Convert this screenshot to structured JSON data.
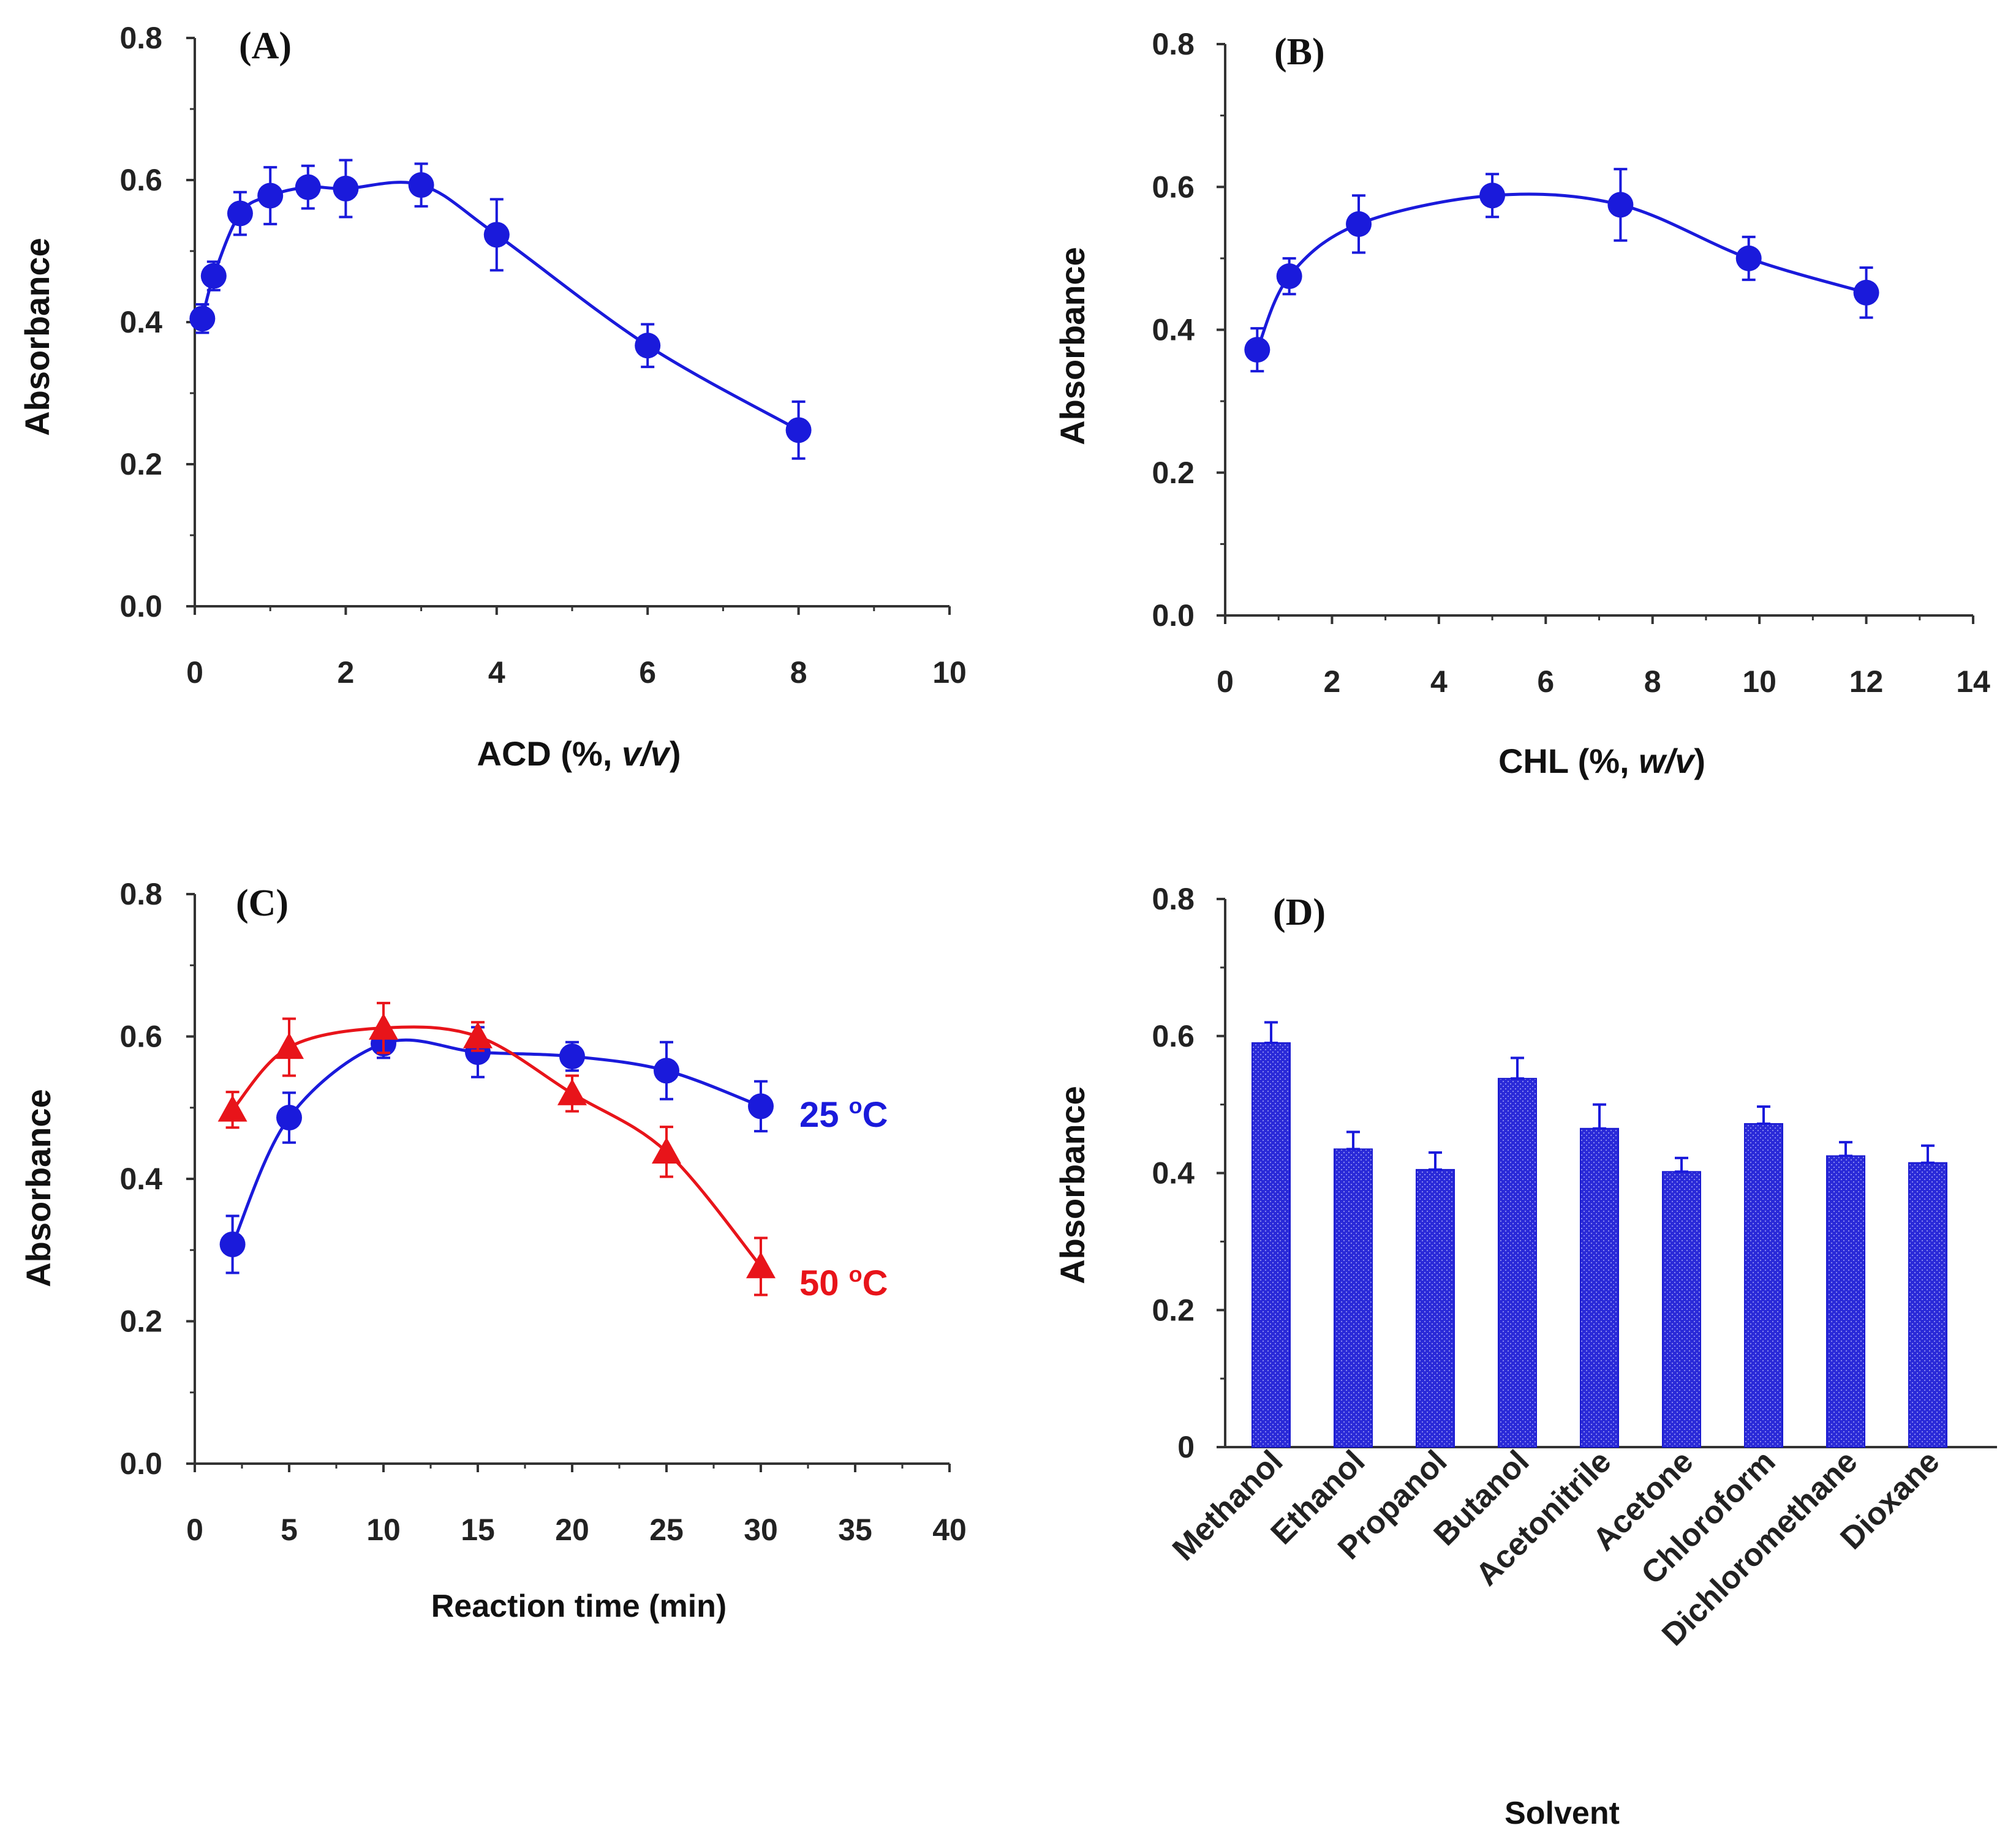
{
  "chart_data": [
    {
      "panel": "(A)",
      "type": "line",
      "xlabel_prefix": "ACD (%, ",
      "xlabel_italic": "v/v",
      "xlabel_suffix": ")",
      "ylabel": "Absorbance",
      "xlim": [
        0,
        10
      ],
      "ylim": [
        0,
        0.8
      ],
      "xticks": [
        "0",
        "2",
        "4",
        "6",
        "8",
        "10"
      ],
      "yticks": [
        "0.0",
        "0.2",
        "0.4",
        "0.6",
        "0.8"
      ],
      "color": "#1a1adb",
      "series": [
        {
          "name": "ACD",
          "x": [
            0.1,
            0.25,
            0.6,
            1.0,
            1.5,
            2.0,
            3.0,
            4.0,
            6.0,
            8.0
          ],
          "y": [
            0.405,
            0.465,
            0.553,
            0.578,
            0.59,
            0.588,
            0.593,
            0.523,
            0.367,
            0.248
          ],
          "err": [
            0.02,
            0.02,
            0.03,
            0.04,
            0.03,
            0.04,
            0.03,
            0.05,
            0.03,
            0.04
          ]
        }
      ]
    },
    {
      "panel": "(B)",
      "type": "line",
      "xlabel_prefix": "CHL (%, ",
      "xlabel_italic": "w/v",
      "xlabel_suffix": ")",
      "ylabel": "Absorbance",
      "xlim": [
        0,
        14
      ],
      "ylim": [
        0,
        0.8
      ],
      "xticks": [
        "0",
        "2",
        "4",
        "6",
        "8",
        "10",
        "12",
        "14"
      ],
      "yticks": [
        "0.0",
        "0.2",
        "0.4",
        "0.6",
        "0.8"
      ],
      "color": "#1a1adb",
      "series": [
        {
          "name": "CHL",
          "x": [
            0.6,
            1.2,
            2.5,
            5.0,
            7.4,
            9.8,
            12.0
          ],
          "y": [
            0.372,
            0.475,
            0.548,
            0.588,
            0.575,
            0.5,
            0.452
          ],
          "err": [
            0.03,
            0.025,
            0.04,
            0.03,
            0.05,
            0.03,
            0.035
          ]
        }
      ]
    },
    {
      "panel": "(C)",
      "type": "line",
      "xlabel": "Reaction time (min)",
      "ylabel": "Absorbance",
      "xlim": [
        0,
        40
      ],
      "ylim": [
        0,
        0.8
      ],
      "xticks": [
        "0",
        "5",
        "10",
        "15",
        "20",
        "25",
        "30",
        "35",
        "40"
      ],
      "yticks": [
        "0.0",
        "0.2",
        "0.4",
        "0.6",
        "0.8"
      ],
      "series": [
        {
          "name": "25 °C",
          "label_main": "25 ",
          "label_sup": "o",
          "label_end": "C",
          "color": "#1a1adb",
          "marker": "circle",
          "x": [
            2,
            5,
            10,
            15,
            20,
            25,
            30
          ],
          "y": [
            0.308,
            0.486,
            0.59,
            0.578,
            0.572,
            0.552,
            0.502
          ],
          "err": [
            0.04,
            0.035,
            0.02,
            0.035,
            0.02,
            0.04,
            0.035
          ]
        },
        {
          "name": "50 °C",
          "label_main": "50 ",
          "label_sup": "o",
          "label_end": "C",
          "color": "#e8141a",
          "marker": "triangle",
          "x": [
            2,
            5,
            10,
            15,
            20,
            25,
            30
          ],
          "y": [
            0.497,
            0.585,
            0.612,
            0.6,
            0.52,
            0.438,
            0.277
          ],
          "err": [
            0.025,
            0.04,
            0.035,
            0.02,
            0.025,
            0.035,
            0.04
          ]
        }
      ]
    },
    {
      "panel": "(D)",
      "type": "bar",
      "xlabel": "Solvent",
      "ylabel": "Absorbance",
      "ylim": [
        0,
        0.8
      ],
      "yticks": [
        "0",
        "0.2",
        "0.4",
        "0.6",
        "0.8"
      ],
      "color": "#1a1adb",
      "categories": [
        "Methanol",
        "Ethanol",
        "Propanol",
        "Butanol",
        "Acetonitrile",
        "Acetone",
        "Chloroform",
        "Dichloromethane",
        "Dioxane"
      ],
      "values": [
        0.59,
        0.435,
        0.405,
        0.538,
        0.465,
        0.402,
        0.472,
        0.425,
        0.415
      ],
      "err": [
        0.03,
        0.025,
        0.025,
        0.03,
        0.035,
        0.02,
        0.025,
        0.02,
        0.025
      ]
    }
  ]
}
